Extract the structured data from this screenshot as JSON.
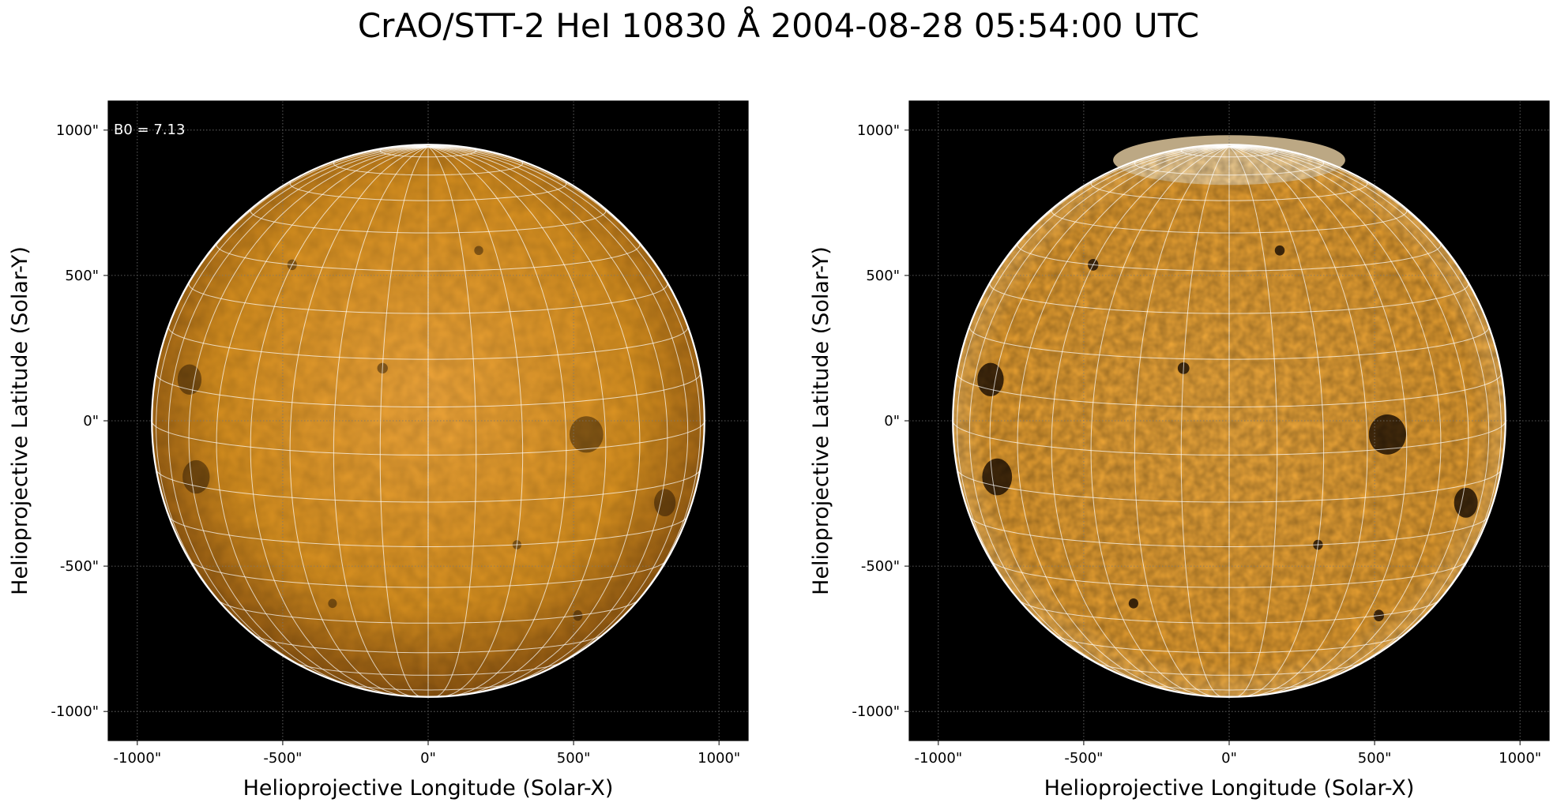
{
  "figure": {
    "title": "CrAO/STT-2 HeI 10830 Å 2004-08-28 05:54:00 UTC"
  },
  "panels": [
    {
      "id": "left",
      "annotation": "B0 = 7.13",
      "xlabel": "Helioprojective Longitude (Solar-X)",
      "ylabel": "Helioprojective Latitude (Solar-Y)",
      "xticks": [
        "-1000\"",
        "-500\"",
        "0\"",
        "500\"",
        "1000\""
      ],
      "yticks": [
        "1000\"",
        "500\"",
        "0\"",
        "-500\"",
        "-1000\""
      ],
      "tick_values": [
        -1000,
        -500,
        0,
        500,
        1000
      ],
      "range_arcsec": [
        -1100,
        1100
      ],
      "disk_radius_arcsec": 950,
      "b0_deg": 7.13,
      "grid_spacing_deg": 10,
      "style": "original"
    },
    {
      "id": "right",
      "annotation": "",
      "xlabel": "Helioprojective Longitude (Solar-X)",
      "ylabel": "Helioprojective Latitude (Solar-Y)",
      "xticks": [
        "-1000\"",
        "-500\"",
        "0\"",
        "500\"",
        "1000\""
      ],
      "yticks": [
        "1000\"",
        "500\"",
        "0\"",
        "-500\"",
        "-1000\""
      ],
      "tick_values": [
        -1000,
        -500,
        0,
        500,
        1000
      ],
      "range_arcsec": [
        -1100,
        1100
      ],
      "disk_radius_arcsec": 950,
      "b0_deg": 7.13,
      "grid_spacing_deg": 10,
      "style": "enhanced"
    }
  ],
  "colors": {
    "background": "#000000",
    "sun_bright": "#f2a93a",
    "sun_mid": "#d8901f",
    "sun_dark": "#7a4a10",
    "grid": "#ffffff",
    "limb": "#ffffff"
  },
  "features": [
    {
      "lon": -62,
      "lat": 12,
      "size": 1.0
    },
    {
      "lon": -58,
      "lat": -8,
      "size": 1.1
    },
    {
      "lon": 35,
      "lat": 3,
      "size": 1.2
    },
    {
      "lon": 62,
      "lat": -14,
      "size": 0.9
    },
    {
      "lon": -10,
      "lat": 18,
      "size": 0.35
    },
    {
      "lon": 15,
      "lat": 45,
      "size": 0.3
    },
    {
      "lon": -40,
      "lat": 40,
      "size": 0.35
    },
    {
      "lon": 20,
      "lat": -20,
      "size": 0.3
    },
    {
      "lon": -25,
      "lat": -35,
      "size": 0.3
    },
    {
      "lon": 45,
      "lat": -40,
      "size": 0.35
    }
  ]
}
